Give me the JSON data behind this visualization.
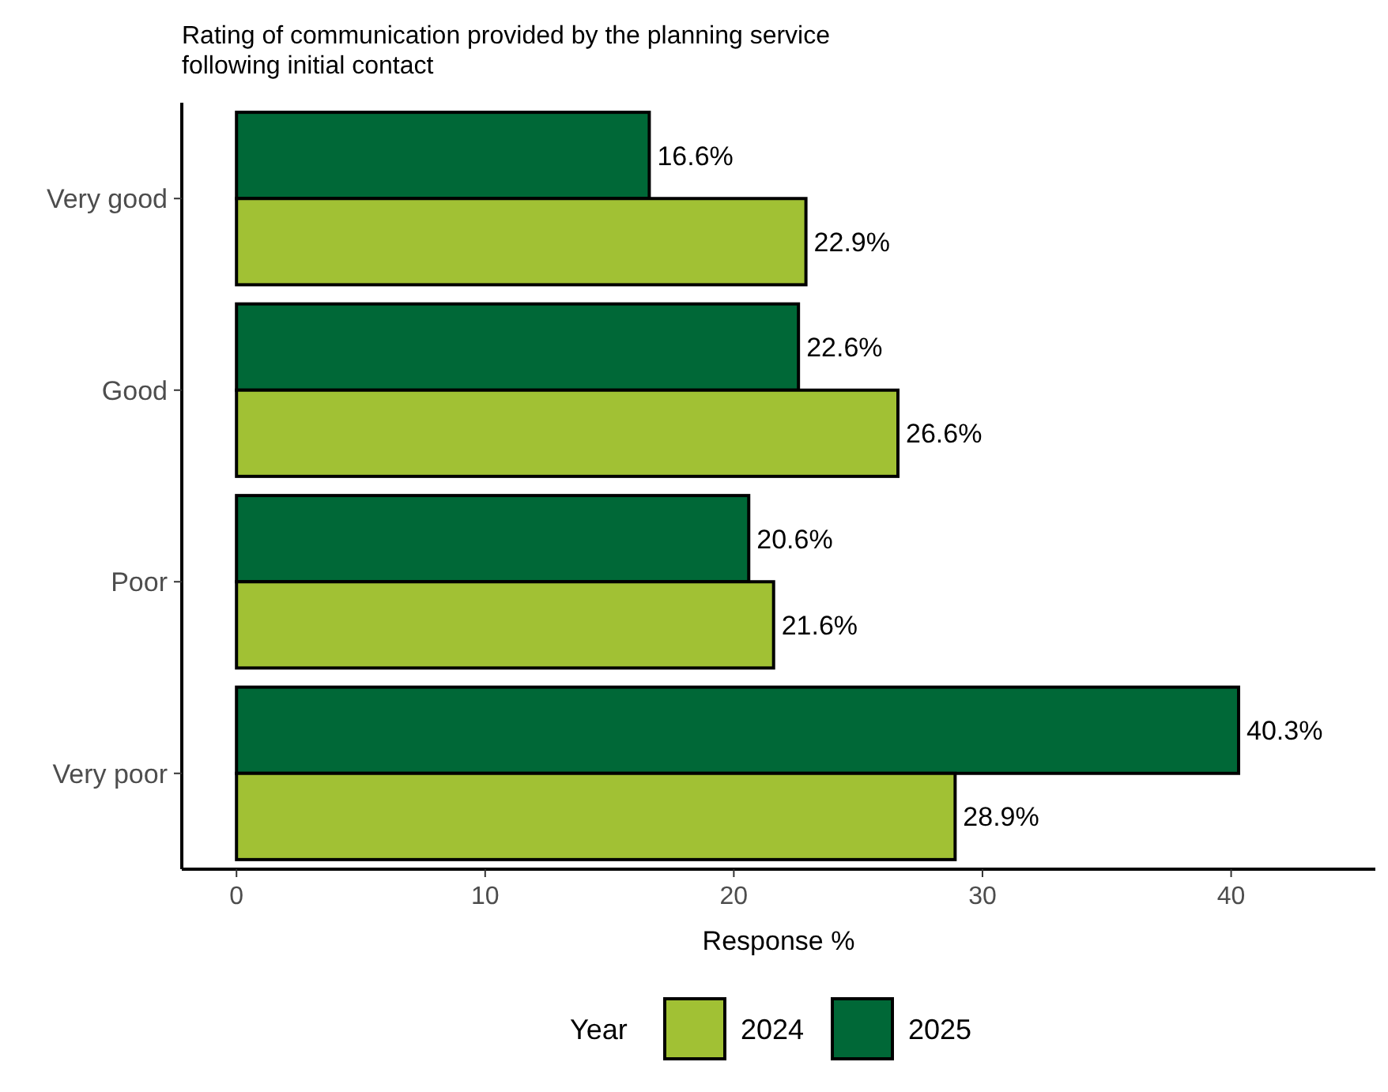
{
  "chart_data": {
    "type": "bar",
    "orientation": "horizontal",
    "title": "Rating of communication provided by the planning service\nfollowing initial contact",
    "xlabel": "Response %",
    "legend_title": "Year",
    "legend": "bottom",
    "categories": [
      "Very good",
      "Good",
      "Poor",
      "Very poor"
    ],
    "series": [
      {
        "name": "2025",
        "color": "#006837",
        "values": [
          16.6,
          22.6,
          20.6,
          40.3
        ],
        "value_labels": [
          "16.6%",
          "22.6%",
          "20.6%",
          "40.3%"
        ]
      },
      {
        "name": "2024",
        "color": "#a1c134",
        "values": [
          22.9,
          26.6,
          21.6,
          28.9
        ],
        "value_labels": [
          "22.9%",
          "26.6%",
          "21.6%",
          "28.9%"
        ]
      }
    ],
    "xlim": [
      -2.2,
      45.8
    ],
    "xticks": [
      0,
      10,
      20,
      30,
      40
    ],
    "grid": false
  }
}
